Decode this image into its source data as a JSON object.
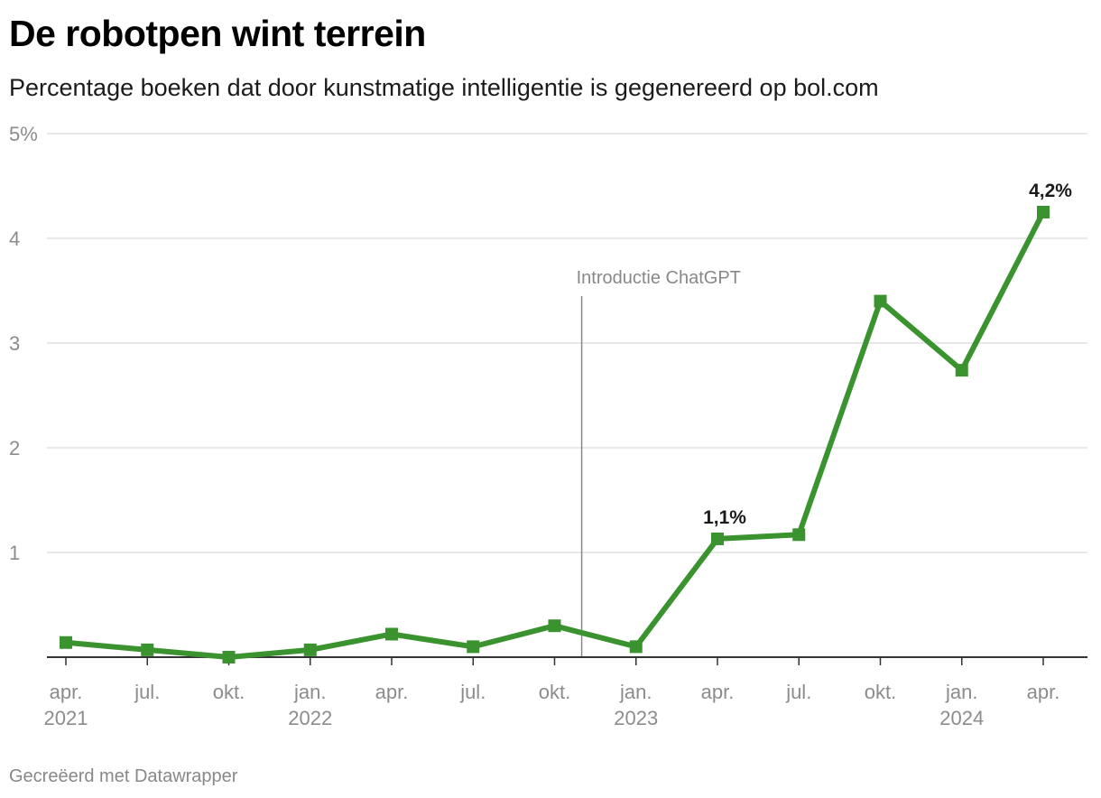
{
  "header": {
    "title": "De robotpen wint terrein",
    "subtitle": "Percentage boeken dat door kunstmatige intelligentie is gegenereerd op bol.com"
  },
  "footer": {
    "credit": "Gecreëerd met Datawrapper"
  },
  "chart_data": {
    "type": "line",
    "title": "De robotpen wint terrein",
    "subtitle": "Percentage boeken dat door kunstmatige intelligentie is gegenereerd op bol.com",
    "xlabel": "",
    "ylabel": "",
    "ylim": [
      0,
      5
    ],
    "yticks": [
      {
        "value": 1,
        "label": "1"
      },
      {
        "value": 2,
        "label": "2"
      },
      {
        "value": 3,
        "label": "3"
      },
      {
        "value": 4,
        "label": "4"
      },
      {
        "value": 5,
        "label": "5%"
      }
    ],
    "x": [
      "2021-04",
      "2021-07",
      "2021-10",
      "2022-01",
      "2022-04",
      "2022-07",
      "2022-10",
      "2023-01",
      "2023-04",
      "2023-07",
      "2023-10",
      "2024-01",
      "2024-04"
    ],
    "x_tick_labels": [
      {
        "line1": "apr.",
        "line2": "2021"
      },
      {
        "line1": "jul.",
        "line2": ""
      },
      {
        "line1": "okt.",
        "line2": ""
      },
      {
        "line1": "jan.",
        "line2": "2022"
      },
      {
        "line1": "apr.",
        "line2": ""
      },
      {
        "line1": "jul.",
        "line2": ""
      },
      {
        "line1": "okt.",
        "line2": ""
      },
      {
        "line1": "jan.",
        "line2": "2023"
      },
      {
        "line1": "apr.",
        "line2": ""
      },
      {
        "line1": "jul.",
        "line2": ""
      },
      {
        "line1": "okt.",
        "line2": ""
      },
      {
        "line1": "jan.",
        "line2": "2024"
      },
      {
        "line1": "apr.",
        "line2": ""
      }
    ],
    "series": [
      {
        "values": [
          0.14,
          0.07,
          0.0,
          0.07,
          0.22,
          0.1,
          0.3,
          0.1,
          1.13,
          1.17,
          3.4,
          2.74,
          4.25
        ]
      }
    ],
    "data_labels": [
      {
        "index": 8,
        "text": "1,1%"
      },
      {
        "index": 12,
        "text": "4,2%"
      }
    ],
    "annotations": [
      {
        "type": "vline",
        "x": "2022-11",
        "text": "Introductie ChatGPT"
      }
    ],
    "grid": true,
    "legend": "none",
    "colors": {
      "series": "#3a932f",
      "grid": "#e0e0e0",
      "axis": "#333333",
      "annotation": "#888888"
    }
  }
}
